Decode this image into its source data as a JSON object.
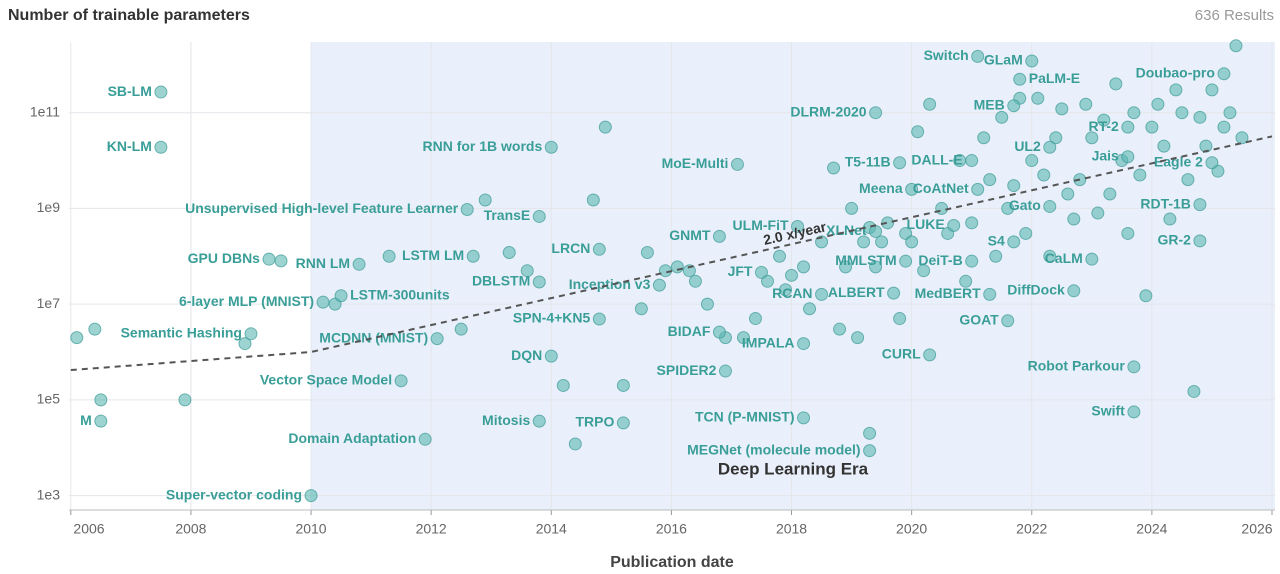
{
  "header": {
    "title": "Number of trainable parameters",
    "results": "636 Results"
  },
  "chart_data": {
    "type": "scatter",
    "yscale": "log",
    "grid": true,
    "xlabel": "Publication date",
    "xlim": [
      2005.97,
      2026.05
    ],
    "xticks": [
      2006,
      2008,
      2010,
      2012,
      2014,
      2016,
      2018,
      2020,
      2022,
      2024,
      2026
    ],
    "ylim": [
      500,
      3000000000000
    ],
    "yticks": [
      {
        "value": 1000,
        "label": "1e3"
      },
      {
        "value": 100000,
        "label": "1e5"
      },
      {
        "value": 10000000,
        "label": "1e7"
      },
      {
        "value": 1000000000,
        "label": "1e9"
      },
      {
        "value": 100000000000,
        "label": "1e11"
      }
    ],
    "era": {
      "label": "Deep Learning Era",
      "start": 2010
    },
    "trend": {
      "label": "2.0 x/year",
      "x": [
        2006,
        2010,
        2026
      ],
      "values": [
        420000,
        1000000,
        32000000000
      ]
    },
    "series": [
      {
        "color": "#5cb8b2",
        "labels": [
          "SB-LM",
          "KN-LM",
          "Switch",
          "GLaM",
          "PaLM-E",
          "Doubao-pro",
          "MEB",
          "DLRM-2020",
          "RT-2",
          "RNN for 1B words",
          "UL2",
          "DALL-E",
          "MoE-Multi",
          "T5-11B",
          "Jais",
          "Eagle 2",
          "Meena",
          "CoAtNet",
          "Unsupervised High-level Feature Learner",
          "TransE",
          "Gato",
          "RDT-1B",
          "ULM-FiT",
          "XLNet",
          "LUKE",
          "GNMT",
          "LRCN",
          "S4",
          "GPU DBNs",
          "RNN LM",
          "LSTM LM",
          "GR-2",
          "CaLM",
          "MMLSTM",
          "DeiT-B",
          "JFT",
          "DBLSTM",
          "Inception v3",
          "RCAN",
          "ALBERT",
          "MedBERT",
          "DiffDock",
          "6-layer MLP (MNIST)",
          "LSTM-300units",
          "SPN-4+KN5",
          "Semantic Hashing",
          "MCDNN (MNIST)",
          "GOAT",
          "BIDAF",
          "IMPALA",
          "DQN",
          "CURL",
          "Robot Parkour",
          "Vector Space Model",
          "SPIDER2",
          "Mitosis",
          "TRPO",
          "TCN (P-MNIST)",
          "Swift",
          "M",
          "Domain Adaptation",
          "MEGNet (molecule model)",
          "Super-vector coding"
        ],
        "x": [
          2007.5,
          2007.5,
          2021.1,
          2022.0,
          2021.8,
          2025.2,
          2021.7,
          2019.4,
          2023.6,
          2014.0,
          2022.3,
          2021.0,
          2017.1,
          2019.8,
          2023.6,
          2025.0,
          2020.0,
          2021.1,
          2012.6,
          2013.8,
          2022.3,
          2024.8,
          2018.1,
          2019.4,
          2020.7,
          2016.8,
          2014.8,
          2021.7,
          2009.3,
          2010.8,
          2012.7,
          2024.8,
          2023.0,
          2019.9,
          2021.0,
          2017.5,
          2013.8,
          2015.8,
          2018.5,
          2019.7,
          2021.3,
          2022.7,
          2010.2,
          2010.5,
          2014.8,
          2009.0,
          2012.1,
          2021.6,
          2016.8,
          2018.2,
          2014.0,
          2020.3,
          2023.7,
          2011.5,
          2016.9,
          2013.8,
          2015.2,
          2018.2,
          2023.7,
          2006.5,
          2011.9,
          2019.3,
          2010.0
        ],
        "values": [
          270000000000,
          19000000000,
          1500000000000,
          1200000000000,
          500000000000,
          650000000000,
          140000000000,
          100000000000,
          50000000000,
          19000000000,
          19000000000,
          10000000000,
          8300000000,
          9000000000,
          12000000000,
          9000000000,
          2500000000,
          2500000000,
          950000000,
          680000000,
          1100000000,
          1200000000,
          420000000,
          330000000,
          440000000,
          260000000,
          140000000,
          200000000,
          87000000,
          68000000,
          100000000,
          210000000,
          87000000,
          79000000,
          79000000,
          46000000,
          29000000,
          25000000,
          16000000,
          17000000,
          16000000,
          19000000,
          11000000,
          15000000,
          4900000,
          2400000,
          1900000,
          4500000,
          2600000,
          1500000,
          820000,
          870000,
          490000,
          250000,
          400000,
          36000,
          33000,
          42000,
          56000,
          36000,
          15000,
          8700,
          1000
        ]
      },
      {
        "color": "#5cb8b2",
        "x": [
          2006.1,
          2006.4,
          2006.5,
          2007.9,
          2008.9,
          2009.5,
          2010.4,
          2011.3,
          2012.5,
          2012.9,
          2013.3,
          2013.6,
          2014.2,
          2014.4,
          2014.7,
          2014.9,
          2015.2,
          2015.5,
          2015.6,
          2015.9,
          2016.1,
          2016.3,
          2016.4,
          2016.6,
          2016.9,
          2017.2,
          2017.4,
          2017.6,
          2017.8,
          2017.9,
          2018.0,
          2018.2,
          2018.3,
          2018.5,
          2018.7,
          2018.8,
          2018.9,
          2019.0,
          2019.1,
          2019.2,
          2019.3,
          2019.3,
          2019.4,
          2019.5,
          2019.6,
          2019.8,
          2019.9,
          2020.0,
          2020.1,
          2020.2,
          2020.3,
          2020.5,
          2020.6,
          2020.8,
          2020.9,
          2021.0,
          2021.2,
          2021.3,
          2021.4,
          2021.5,
          2021.6,
          2021.7,
          2021.8,
          2021.9,
          2022.0,
          2022.1,
          2022.2,
          2022.3,
          2022.4,
          2022.5,
          2022.6,
          2022.7,
          2022.8,
          2022.9,
          2023.0,
          2023.1,
          2023.2,
          2023.3,
          2023.4,
          2023.5,
          2023.6,
          2023.7,
          2023.8,
          2023.9,
          2024.0,
          2024.1,
          2024.2,
          2024.3,
          2024.4,
          2024.5,
          2024.6,
          2024.7,
          2024.8,
          2024.9,
          2025.0,
          2025.1,
          2025.2,
          2025.3,
          2025.4,
          2025.5
        ],
        "values": [
          2000000,
          3000000,
          100000,
          100000,
          1500000,
          80000000,
          10000000,
          100000000,
          3000000,
          1500000000,
          120000000,
          50000000,
          200000,
          12000,
          1500000000,
          50000000000,
          200000,
          8000000,
          120000000,
          50000000,
          60000000,
          50000000,
          30000000,
          10000000,
          2000000,
          2000000,
          5000000,
          30000000,
          100000000,
          20000000,
          40000000,
          60000000,
          8000000,
          200000000,
          7000000000,
          3000000,
          60000000,
          1000000000,
          2000000,
          200000000,
          400000000,
          20000,
          60000000,
          200000000,
          500000000,
          5000000,
          300000000,
          200000000,
          40000000000,
          50000000,
          150000000000,
          1000000000,
          300000000,
          10000000000,
          30000000,
          500000000,
          30000000000,
          4000000000,
          100000000,
          80000000000,
          1000000000,
          3000000000,
          200000000000,
          300000000,
          10000000000,
          200000000000,
          5000000000,
          100000000,
          30000000000,
          120000000000,
          2000000000,
          600000000,
          4000000000,
          150000000000,
          30000000000,
          800000000,
          70000000000,
          2000000000,
          400000000000,
          10000000000,
          300000000,
          100000000000,
          5000000000,
          15000000,
          50000000000,
          150000000000,
          20000000000,
          600000000,
          300000000000,
          100000000000,
          4000000000,
          150000,
          80000000000,
          20000000000,
          300000000000,
          6000000000,
          50000000000,
          100000000000,
          2500000000000,
          30000000000
        ]
      }
    ]
  }
}
